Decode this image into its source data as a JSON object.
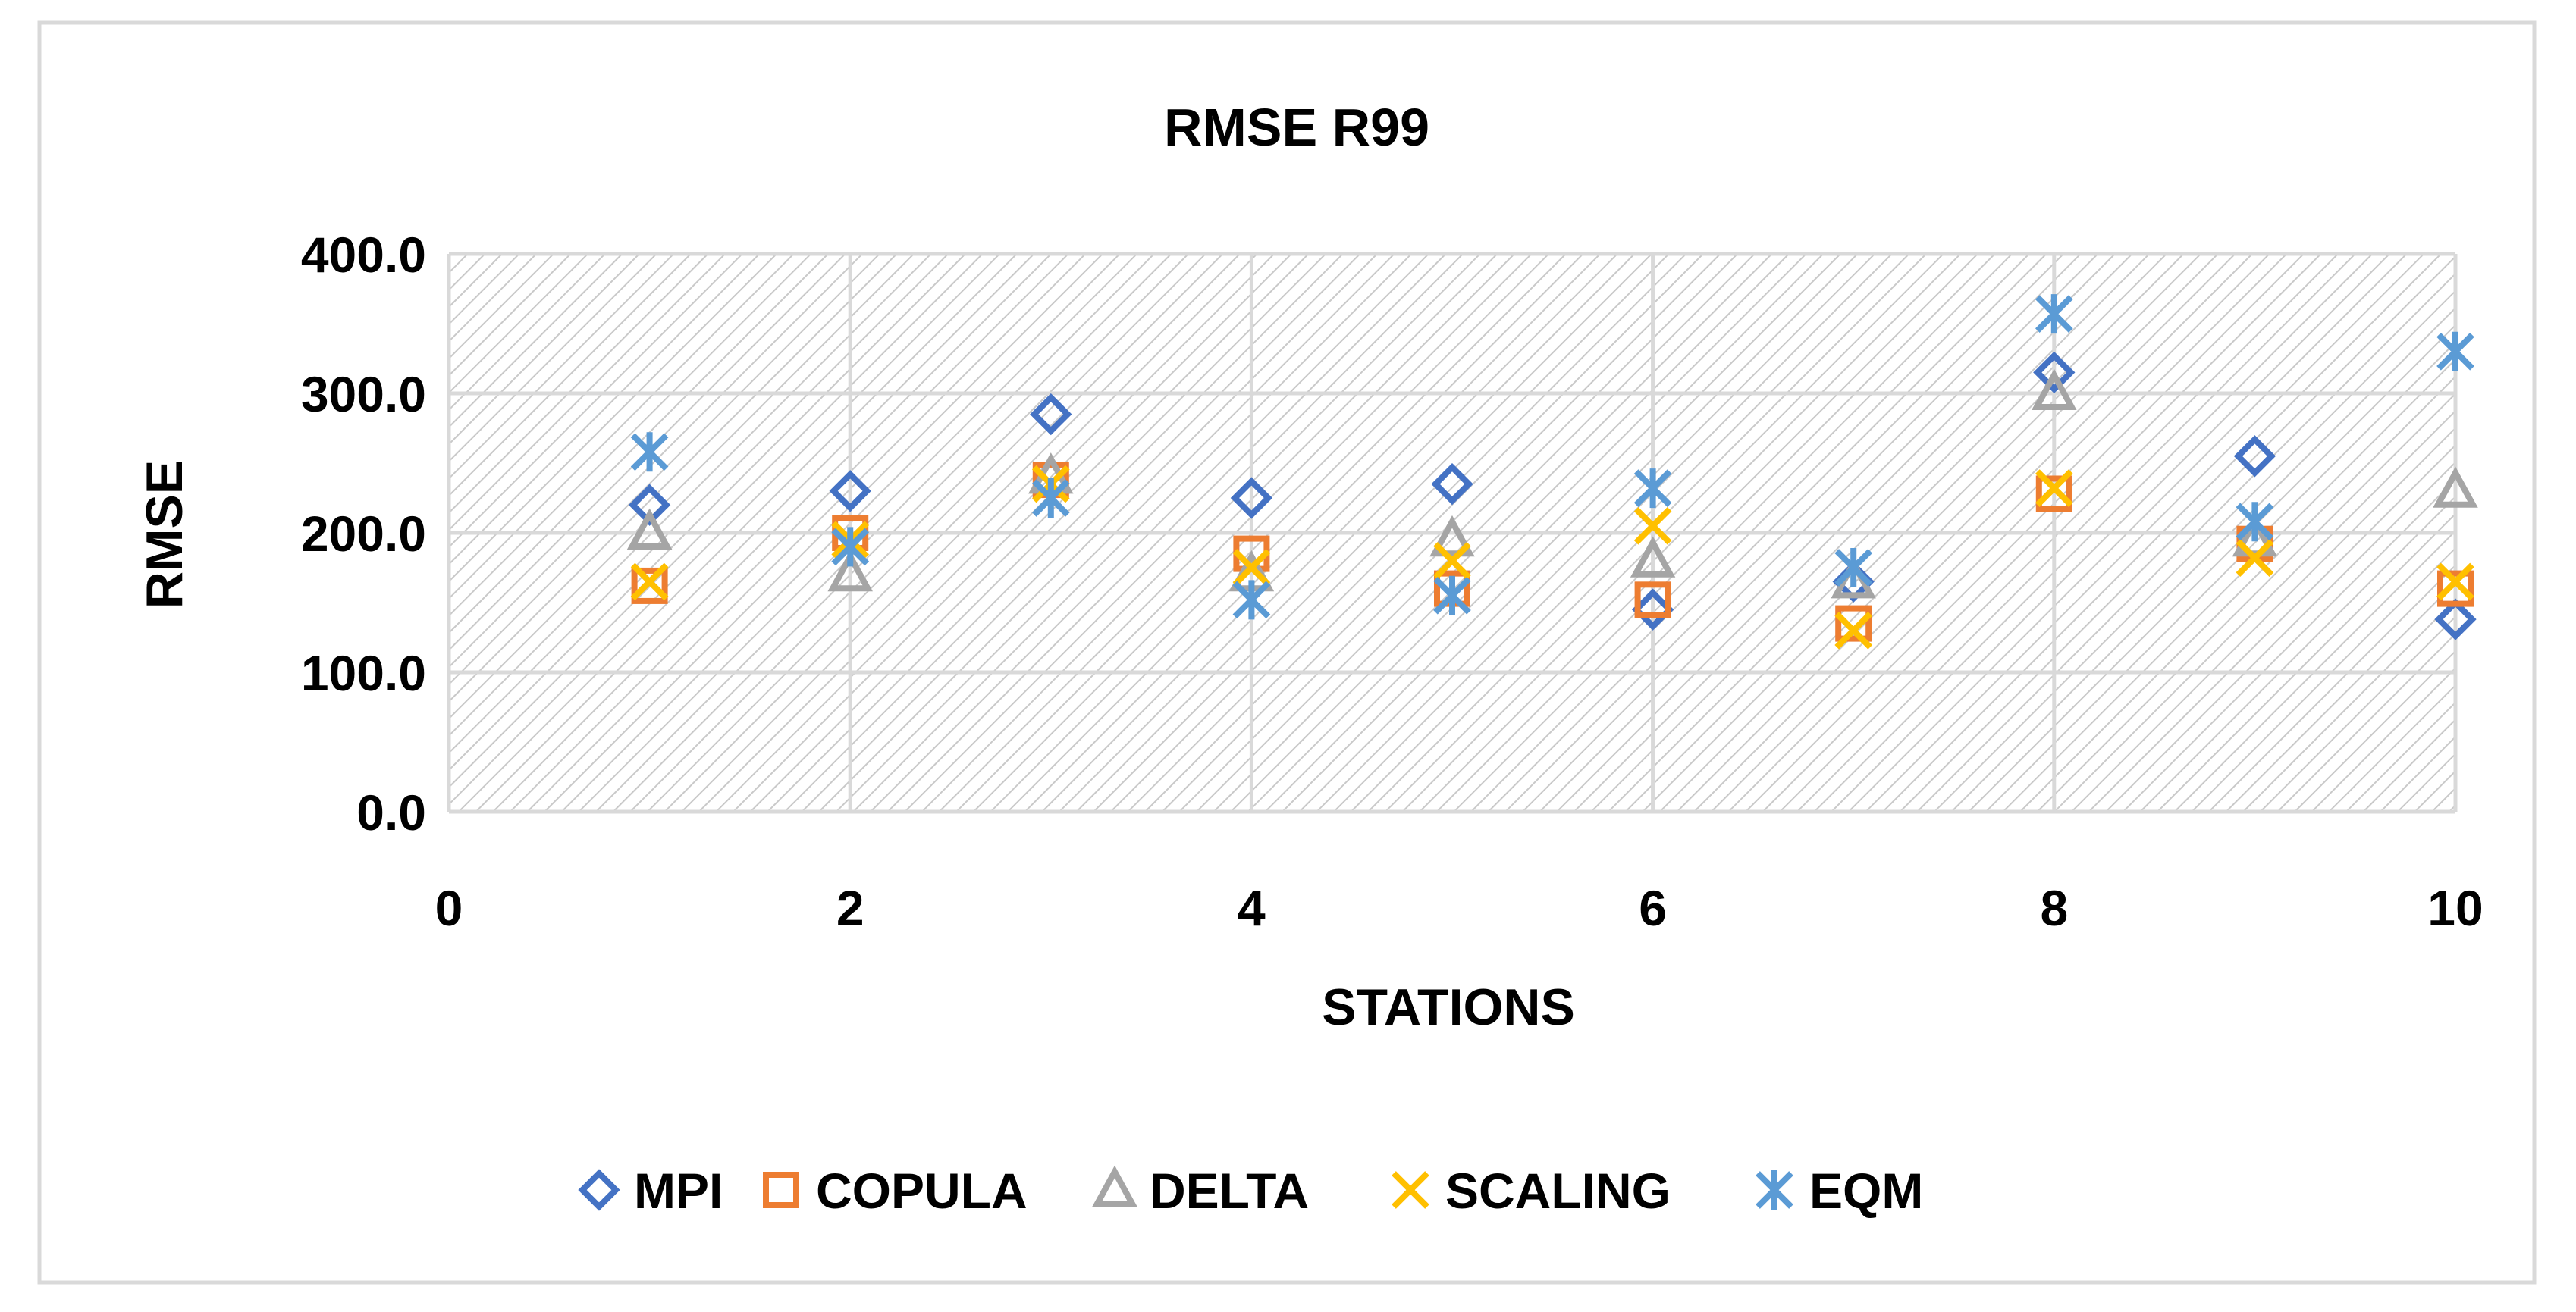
{
  "chart_data": {
    "type": "scatter",
    "title": "RMSE R99",
    "xlabel": "STATIONS",
    "ylabel": "RMSE",
    "xlim": [
      0,
      10
    ],
    "ylim": [
      0,
      400
    ],
    "x_ticks": [
      "0",
      "2",
      "4",
      "6",
      "8",
      "10"
    ],
    "y_ticks": [
      "0.0",
      "100.0",
      "200.0",
      "300.0",
      "400.0"
    ],
    "x_tick_values": [
      0,
      2,
      4,
      6,
      8,
      10
    ],
    "y_tick_values": [
      0,
      100,
      200,
      300,
      400
    ],
    "grid": true,
    "legend_position": "bottom",
    "x": [
      1,
      2,
      3,
      4,
      5,
      6,
      7,
      8,
      9,
      10
    ],
    "series": [
      {
        "name": "MPI",
        "marker": "diamond",
        "color": "#4472C4",
        "values": [
          220,
          230,
          285,
          225,
          235,
          145,
          165,
          315,
          255,
          138
        ]
      },
      {
        "name": "COPULA",
        "marker": "square",
        "color": "#ED7D31",
        "values": [
          162,
          200,
          238,
          185,
          160,
          152,
          135,
          228,
          192,
          160
        ]
      },
      {
        "name": "DELTA",
        "marker": "triangle",
        "color": "#A5A5A5",
        "values": [
          200,
          170,
          240,
          170,
          195,
          180,
          165,
          300,
          195,
          230
        ]
      },
      {
        "name": "SCALING",
        "marker": "x",
        "color": "#FFC000",
        "values": [
          165,
          195,
          235,
          175,
          180,
          205,
          130,
          232,
          182,
          165
        ]
      },
      {
        "name": "EQM",
        "marker": "star",
        "color": "#5B9BD5",
        "values": [
          258,
          190,
          225,
          152,
          155,
          232,
          175,
          357,
          208,
          330
        ]
      }
    ]
  }
}
